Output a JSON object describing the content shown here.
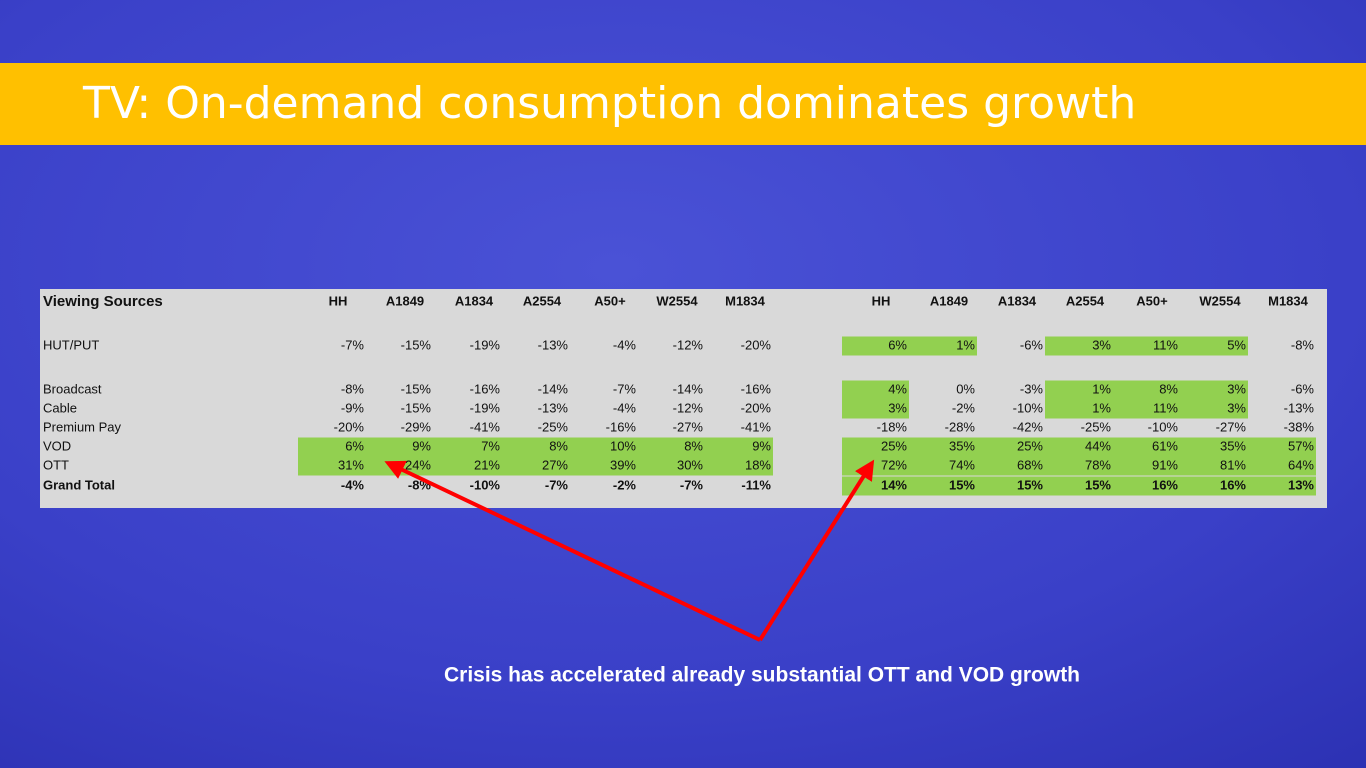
{
  "title": "TV: On-demand consumption dominates growth",
  "table": {
    "headers": [
      "Viewing Sources",
      "HH",
      "A1849",
      "A1834",
      "A2554",
      "A50+",
      "W2554",
      "M1834",
      "HH",
      "A1849",
      "A1834",
      "A2554",
      "A50+",
      "W2554",
      "M1834"
    ],
    "highlight_color": "#92d050",
    "rows": [
      {
        "label": "HUT/PUT",
        "cells": [
          "-7%",
          "-15%",
          "-19%",
          "-13%",
          "-4%",
          "-12%",
          "-20%",
          "6%",
          "1%",
          "-6%",
          "3%",
          "11%",
          "5%",
          "-8%"
        ],
        "highlighted": [
          7,
          8,
          10,
          11,
          12
        ]
      },
      {
        "label": "Broadcast",
        "cells": [
          "-8%",
          "-15%",
          "-16%",
          "-14%",
          "-7%",
          "-14%",
          "-16%",
          "4%",
          "0%",
          "-3%",
          "1%",
          "8%",
          "3%",
          "-6%"
        ],
        "highlighted": [
          7,
          10,
          11,
          12
        ]
      },
      {
        "label": "Cable",
        "cells": [
          "-9%",
          "-15%",
          "-19%",
          "-13%",
          "-4%",
          "-12%",
          "-20%",
          "3%",
          "-2%",
          "-10%",
          "1%",
          "11%",
          "3%",
          "-13%"
        ],
        "highlighted": [
          7,
          10,
          11,
          12
        ]
      },
      {
        "label": "Premium Pay",
        "cells": [
          "-20%",
          "-29%",
          "-41%",
          "-25%",
          "-16%",
          "-27%",
          "-41%",
          "-18%",
          "-28%",
          "-42%",
          "-25%",
          "-10%",
          "-27%",
          "-38%"
        ],
        "highlighted": []
      },
      {
        "label": "VOD",
        "cells": [
          "6%",
          "9%",
          "7%",
          "8%",
          "10%",
          "8%",
          "9%",
          "25%",
          "35%",
          "25%",
          "44%",
          "61%",
          "35%",
          "57%"
        ],
        "highlighted": [
          0,
          1,
          2,
          3,
          4,
          5,
          6,
          7,
          8,
          9,
          10,
          11,
          12,
          13
        ]
      },
      {
        "label": "OTT",
        "cells": [
          "31%",
          "24%",
          "21%",
          "27%",
          "39%",
          "30%",
          "18%",
          "72%",
          "74%",
          "68%",
          "78%",
          "91%",
          "81%",
          "64%"
        ],
        "highlighted": [
          0,
          1,
          2,
          3,
          4,
          5,
          6,
          7,
          8,
          9,
          10,
          11,
          12,
          13
        ]
      },
      {
        "label": "Grand Total",
        "cells": [
          "-4%",
          "-8%",
          "-10%",
          "-7%",
          "-2%",
          "-7%",
          "-11%",
          "14%",
          "15%",
          "15%",
          "15%",
          "16%",
          "16%",
          "13%"
        ],
        "highlighted": [
          7,
          8,
          9,
          10,
          11,
          12,
          13
        ]
      }
    ]
  },
  "annotation": "Crisis has accelerated already substantial OTT and VOD growth"
}
